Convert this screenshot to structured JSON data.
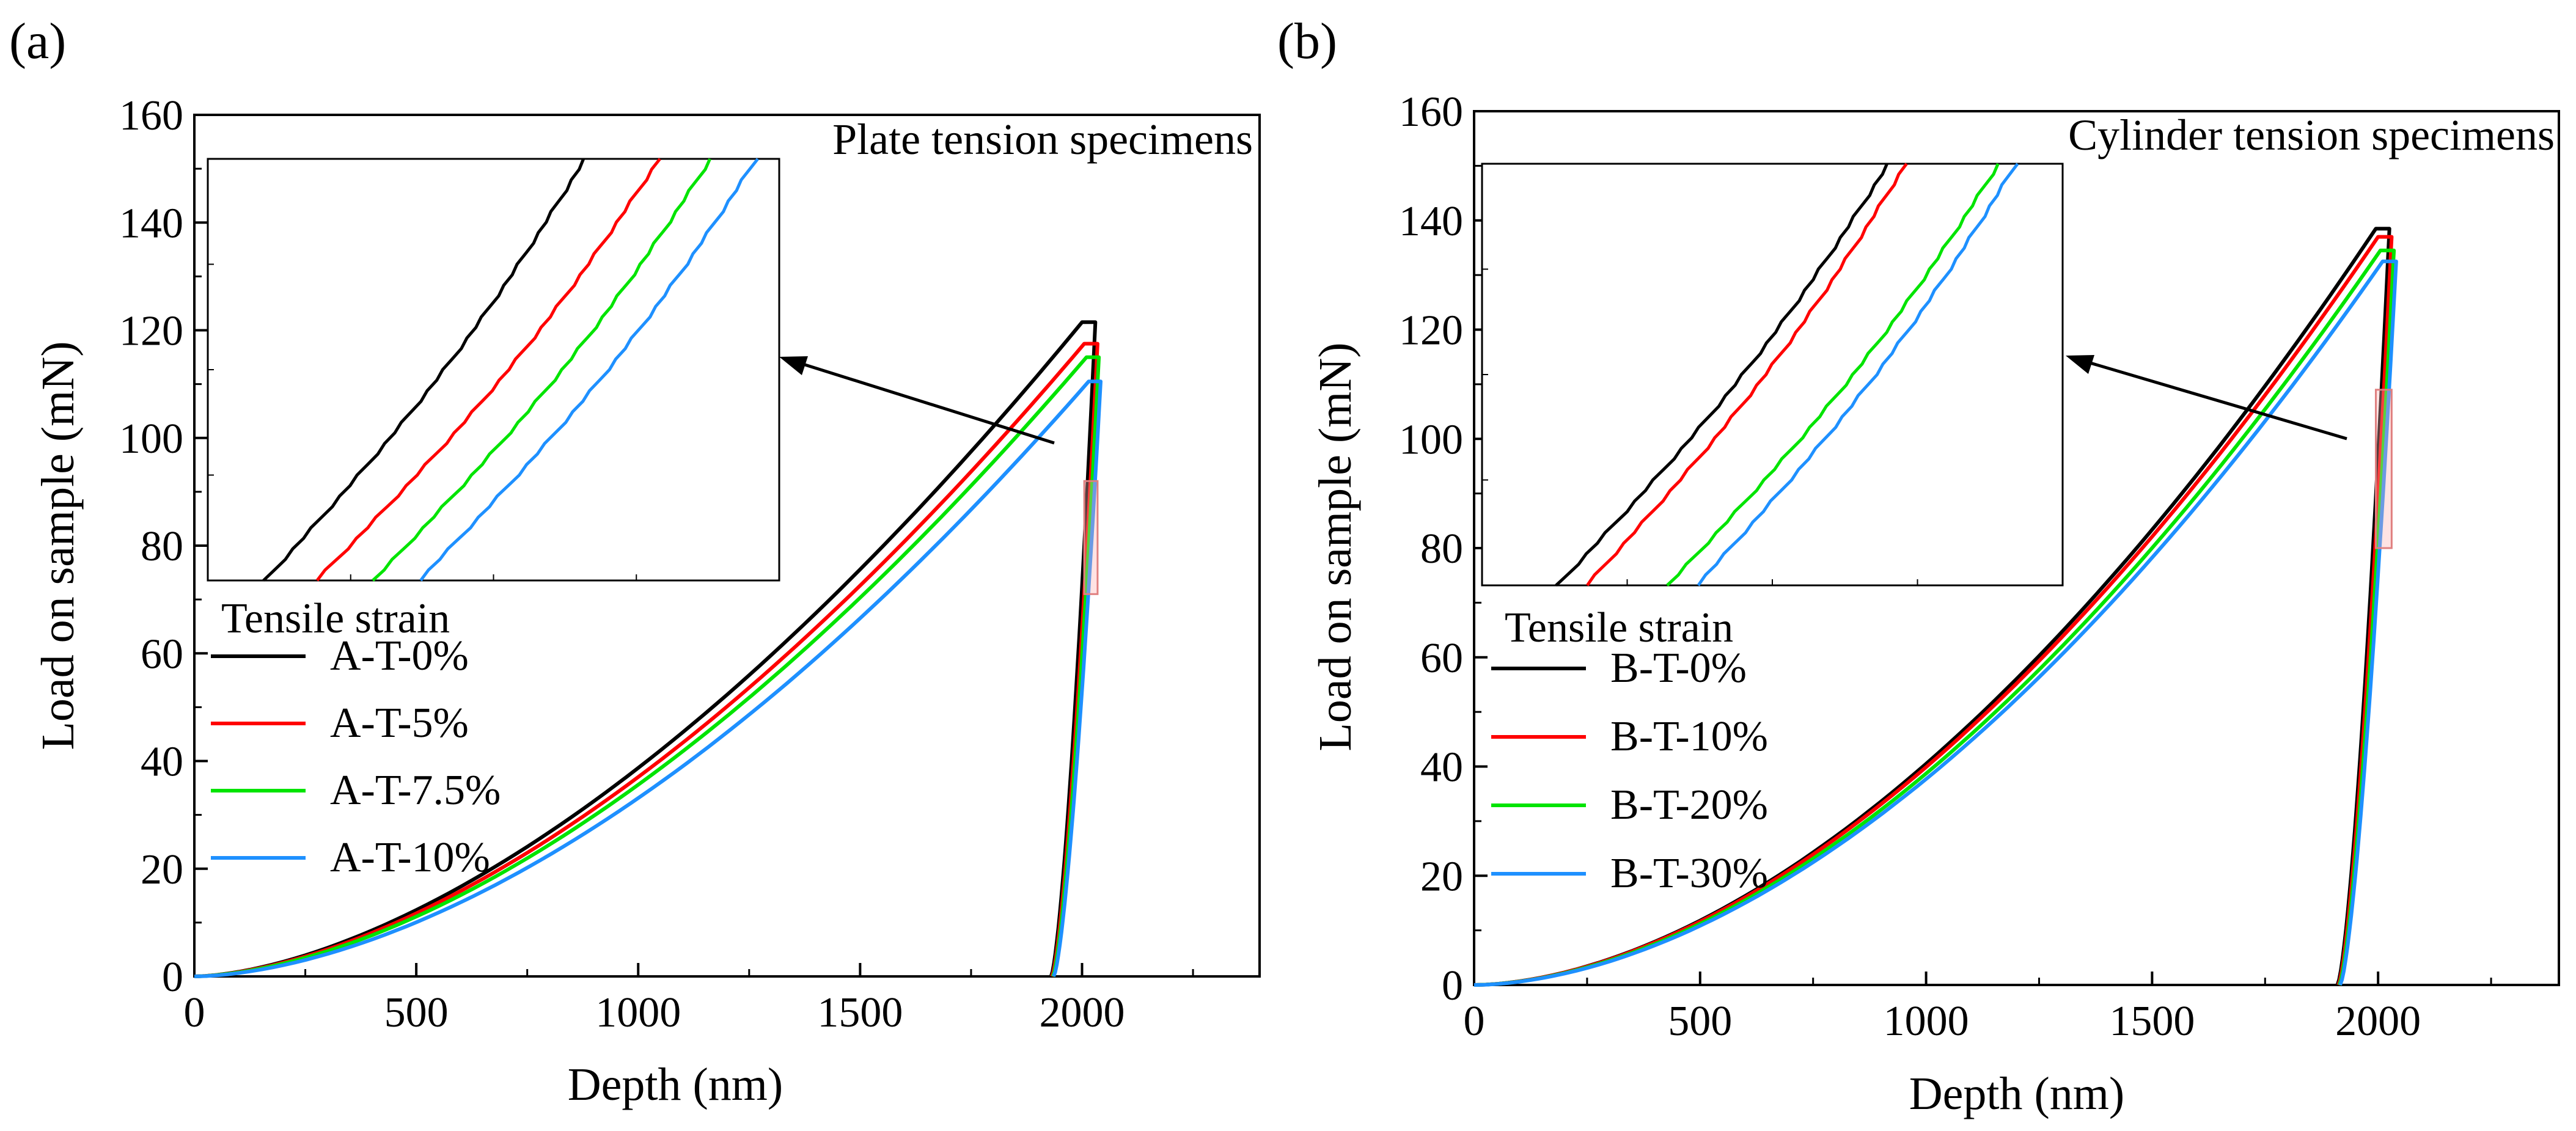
{
  "chart_data": [
    {
      "type": "line",
      "panel_label": "(a)",
      "title": "Plate tension specimens",
      "xlabel": "Depth (nm)",
      "ylabel": "Load on sample (mN)",
      "xlim": [
        0,
        2400
      ],
      "ylim": [
        0,
        160
      ],
      "xticks": [
        0,
        500,
        1000,
        1500,
        2000
      ],
      "yticks": [
        0,
        20,
        40,
        60,
        80,
        100,
        120,
        140,
        160
      ],
      "legend_title": "Tensile strain",
      "legend_position": "left",
      "series": [
        {
          "name": "A-T-0%",
          "color": "#000000",
          "peak_depth": 2000,
          "peak_load": 121.5,
          "hold_end_depth": 2030,
          "final_depth": 1930,
          "exponent": 1.65
        },
        {
          "name": "A-T-5%",
          "color": "#ff0000",
          "peak_depth": 2005,
          "peak_load": 117.5,
          "hold_end_depth": 2035,
          "final_depth": 1932,
          "exponent": 1.66
        },
        {
          "name": "A-T-7.5%",
          "color": "#00e400",
          "peak_depth": 2010,
          "peak_load": 115.0,
          "hold_end_depth": 2038,
          "final_depth": 1934,
          "exponent": 1.68
        },
        {
          "name": "A-T-10%",
          "color": "#1e90ff",
          "peak_depth": 2015,
          "peak_load": 110.5,
          "hold_end_depth": 2042,
          "final_depth": 1936,
          "exponent": 1.72
        }
      ],
      "zoom_region": {
        "x": [
          2005,
          2035
        ],
        "y": [
          71,
          92
        ]
      },
      "inset_series": [
        {
          "name": "A-T-0%",
          "color": "#000000",
          "x_start": 0.1,
          "x_end": 0.66
        },
        {
          "name": "A-T-5%",
          "color": "#ff0000",
          "x_start": 0.19,
          "x_end": 0.79
        },
        {
          "name": "A-T-7.5%",
          "color": "#00e400",
          "x_start": 0.29,
          "x_end": 0.88
        },
        {
          "name": "A-T-10%",
          "color": "#1e90ff",
          "x_start": 0.37,
          "x_end": 0.96
        }
      ]
    },
    {
      "type": "line",
      "panel_label": "(b)",
      "title": "Cylinder tension specimens",
      "xlabel": "Depth (nm)",
      "ylabel": "Load on sample (mN)",
      "xlim": [
        0,
        2400
      ],
      "ylim": [
        0,
        160
      ],
      "xticks": [
        0,
        500,
        1000,
        1500,
        2000
      ],
      "yticks": [
        0,
        20,
        40,
        60,
        80,
        100,
        120,
        140,
        160
      ],
      "legend_title": "Tensile strain",
      "legend_position": "left",
      "series": [
        {
          "name": "B-T-0%",
          "color": "#000000",
          "peak_depth": 1995,
          "peak_load": 138.5,
          "hold_end_depth": 2025,
          "final_depth": 1910,
          "exponent": 1.78
        },
        {
          "name": "B-T-10%",
          "color": "#ff0000",
          "peak_depth": 2000,
          "peak_load": 137.0,
          "hold_end_depth": 2030,
          "final_depth": 1912,
          "exponent": 1.78
        },
        {
          "name": "B-T-20%",
          "color": "#00e400",
          "peak_depth": 2005,
          "peak_load": 134.5,
          "hold_end_depth": 2035,
          "final_depth": 1914,
          "exponent": 1.79
        },
        {
          "name": "B-T-30%",
          "color": "#1e90ff",
          "peak_depth": 2010,
          "peak_load": 132.5,
          "hold_end_depth": 2040,
          "final_depth": 1916,
          "exponent": 1.8
        }
      ],
      "zoom_region": {
        "x": [
          1995,
          2030
        ],
        "y": [
          80,
          109
        ]
      },
      "inset_series": [
        {
          "name": "B-T-0%",
          "color": "#000000",
          "x_start": 0.13,
          "x_end": 0.7
        },
        {
          "name": "B-T-10%",
          "color": "#ff0000",
          "x_start": 0.18,
          "x_end": 0.73
        },
        {
          "name": "B-T-20%",
          "color": "#00e400",
          "x_start": 0.32,
          "x_end": 0.89
        },
        {
          "name": "B-T-30%",
          "color": "#1e90ff",
          "x_start": 0.37,
          "x_end": 0.92
        }
      ]
    }
  ]
}
